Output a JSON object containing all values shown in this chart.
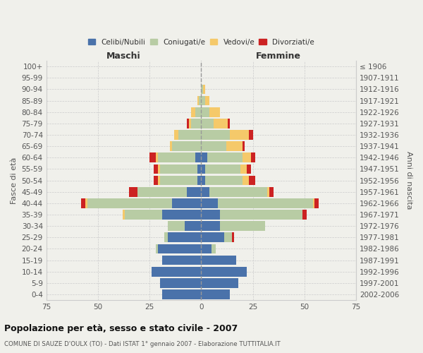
{
  "age_groups": [
    "0-4",
    "5-9",
    "10-14",
    "15-19",
    "20-24",
    "25-29",
    "30-34",
    "35-39",
    "40-44",
    "45-49",
    "50-54",
    "55-59",
    "60-64",
    "65-69",
    "70-74",
    "75-79",
    "80-84",
    "85-89",
    "90-94",
    "95-99",
    "100+"
  ],
  "birth_years": [
    "2002-2006",
    "1997-2001",
    "1992-1996",
    "1987-1991",
    "1982-1986",
    "1977-1981",
    "1972-1976",
    "1967-1971",
    "1962-1966",
    "1957-1961",
    "1952-1956",
    "1947-1951",
    "1942-1946",
    "1937-1941",
    "1932-1936",
    "1927-1931",
    "1922-1926",
    "1917-1921",
    "1912-1916",
    "1907-1911",
    "≤ 1906"
  ],
  "maschi": {
    "celibi": [
      19,
      20,
      24,
      19,
      21,
      16,
      8,
      19,
      14,
      7,
      2,
      2,
      3,
      0,
      0,
      0,
      0,
      0,
      0,
      0,
      0
    ],
    "coniugati": [
      0,
      0,
      0,
      0,
      1,
      2,
      8,
      18,
      41,
      24,
      18,
      18,
      18,
      14,
      11,
      5,
      3,
      1,
      0,
      0,
      0
    ],
    "vedovi": [
      0,
      0,
      0,
      0,
      0,
      0,
      0,
      1,
      1,
      0,
      1,
      1,
      1,
      1,
      2,
      1,
      2,
      1,
      0,
      0,
      0
    ],
    "divorziati": [
      0,
      0,
      0,
      0,
      0,
      0,
      0,
      0,
      2,
      4,
      2,
      2,
      3,
      0,
      0,
      1,
      0,
      0,
      0,
      0,
      0
    ]
  },
  "femmine": {
    "nubili": [
      14,
      18,
      22,
      17,
      5,
      11,
      9,
      9,
      8,
      4,
      2,
      2,
      3,
      0,
      0,
      0,
      0,
      0,
      0,
      0,
      0
    ],
    "coniugate": [
      0,
      0,
      0,
      0,
      2,
      4,
      22,
      40,
      46,
      28,
      18,
      17,
      17,
      12,
      14,
      6,
      4,
      2,
      1,
      0,
      0
    ],
    "vedove": [
      0,
      0,
      0,
      0,
      0,
      0,
      0,
      0,
      1,
      1,
      3,
      3,
      4,
      8,
      9,
      7,
      5,
      2,
      1,
      0,
      0
    ],
    "divorziate": [
      0,
      0,
      0,
      0,
      0,
      1,
      0,
      2,
      2,
      2,
      3,
      2,
      2,
      1,
      2,
      1,
      0,
      0,
      0,
      0,
      0
    ]
  },
  "colors": {
    "celibi": "#4a72aa",
    "coniugati": "#b8cca4",
    "vedovi": "#f5c96a",
    "divorziati": "#cc2222"
  },
  "title": "Popolazione per età, sesso e stato civile - 2007",
  "subtitle": "COMUNE DI SAUZE D'OULX (TO) - Dati ISTAT 1° gennaio 2007 - Elaborazione TUTTITALIA.IT",
  "xlabel_left": "Maschi",
  "xlabel_right": "Femmine",
  "ylabel_left": "Fasce di età",
  "ylabel_right": "Anni di nascita",
  "xlim": 75,
  "bg_color": "#f0f0eb",
  "grid_color": "#cccccc"
}
